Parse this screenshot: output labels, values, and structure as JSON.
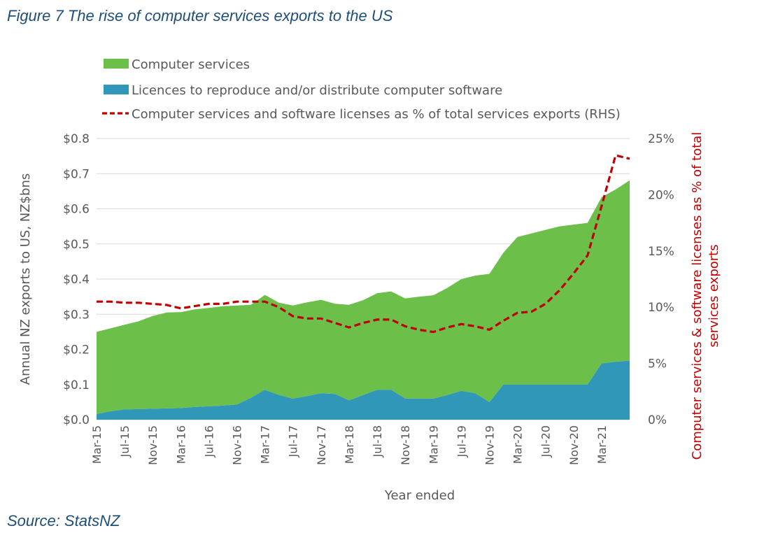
{
  "figure_title": "Figure 7 The rise of computer services exports to the US",
  "source": "Source: StatsNZ",
  "colors": {
    "computer_services": "#6cc04a",
    "licences": "#3097b8",
    "share_line": "#c00000",
    "left_axis_text": "#595959",
    "right_axis_text": "#c00000",
    "title_text": "#1f4e79"
  },
  "chart_data": {
    "type": "area",
    "title": "",
    "xlabel": "Year ended",
    "ylabel": "Annual NZ exports to US, NZ$bns",
    "y2label": "Computer services & software licenses as % of total services exports",
    "ylim": [
      0,
      0.8
    ],
    "y2lim": [
      0,
      25
    ],
    "yticks": [
      "$0.0",
      "$0.1",
      "$0.2",
      "$0.3",
      "$0.4",
      "$0.5",
      "$0.6",
      "$0.7",
      "$0.8"
    ],
    "y2ticks": [
      "0%",
      "5%",
      "10%",
      "15%",
      "20%",
      "25%"
    ],
    "grid": true,
    "legend_position": "top",
    "x": [
      "Mar-15",
      "May-15",
      "Jul-15",
      "Sep-15",
      "Nov-15",
      "Jan-16",
      "Mar-16",
      "May-16",
      "Jul-16",
      "Sep-16",
      "Nov-16",
      "Jan-17",
      "Mar-17",
      "May-17",
      "Jul-17",
      "Sep-17",
      "Nov-17",
      "Jan-18",
      "Mar-18",
      "May-18",
      "Jul-18",
      "Sep-18",
      "Nov-18",
      "Jan-19",
      "Mar-19",
      "May-19",
      "Jul-19",
      "Sep-19",
      "Nov-19",
      "Jan-20",
      "Mar-20",
      "May-20",
      "Jul-20",
      "Sep-20",
      "Nov-20",
      "Jan-21",
      "Mar-21",
      "May-21",
      "Jul-21"
    ],
    "x_ticks_shown": [
      "Mar-15",
      "Jul-15",
      "Nov-15",
      "Mar-16",
      "Jul-16",
      "Nov-16",
      "Mar-17",
      "Jul-17",
      "Nov-17",
      "Mar-18",
      "Jul-18",
      "Nov-18",
      "Mar-19",
      "Jul-19",
      "Nov-19",
      "Mar-20",
      "Jul-20",
      "Nov-20",
      "Mar-21"
    ],
    "series": [
      {
        "name": "Computer services",
        "kind": "area_stacked",
        "values": [
          0.234,
          0.236,
          0.241,
          0.25,
          0.264,
          0.273,
          0.273,
          0.278,
          0.28,
          0.283,
          0.282,
          0.265,
          0.27,
          0.263,
          0.265,
          0.267,
          0.266,
          0.257,
          0.272,
          0.27,
          0.275,
          0.28,
          0.285,
          0.29,
          0.294,
          0.305,
          0.318,
          0.335,
          0.365,
          0.375,
          0.42,
          0.43,
          0.44,
          0.45,
          0.455,
          0.46,
          0.473,
          0.49,
          0.513
        ]
      },
      {
        "name": "Licences to reproduce and/or distribute computer software",
        "kind": "area_base",
        "values": [
          0.016,
          0.024,
          0.029,
          0.03,
          0.031,
          0.032,
          0.033,
          0.036,
          0.038,
          0.04,
          0.043,
          0.062,
          0.085,
          0.07,
          0.06,
          0.067,
          0.075,
          0.073,
          0.055,
          0.07,
          0.085,
          0.085,
          0.06,
          0.06,
          0.06,
          0.07,
          0.082,
          0.075,
          0.05,
          0.1,
          0.1,
          0.1,
          0.1,
          0.1,
          0.1,
          0.1,
          0.16,
          0.165,
          0.168
        ]
      },
      {
        "name": "Computer services and software licenses as % of total services exports (RHS)",
        "kind": "line_rhs",
        "values": [
          10.5,
          10.5,
          10.4,
          10.4,
          10.3,
          10.2,
          9.9,
          10.1,
          10.3,
          10.3,
          10.5,
          10.5,
          10.5,
          10.0,
          9.2,
          9.0,
          9.0,
          8.6,
          8.2,
          8.6,
          8.9,
          8.9,
          8.3,
          8.0,
          7.8,
          8.2,
          8.5,
          8.3,
          8.0,
          8.8,
          9.5,
          9.6,
          10.3,
          11.5,
          13.0,
          14.6,
          19.0,
          23.5,
          23.2
        ]
      }
    ]
  }
}
